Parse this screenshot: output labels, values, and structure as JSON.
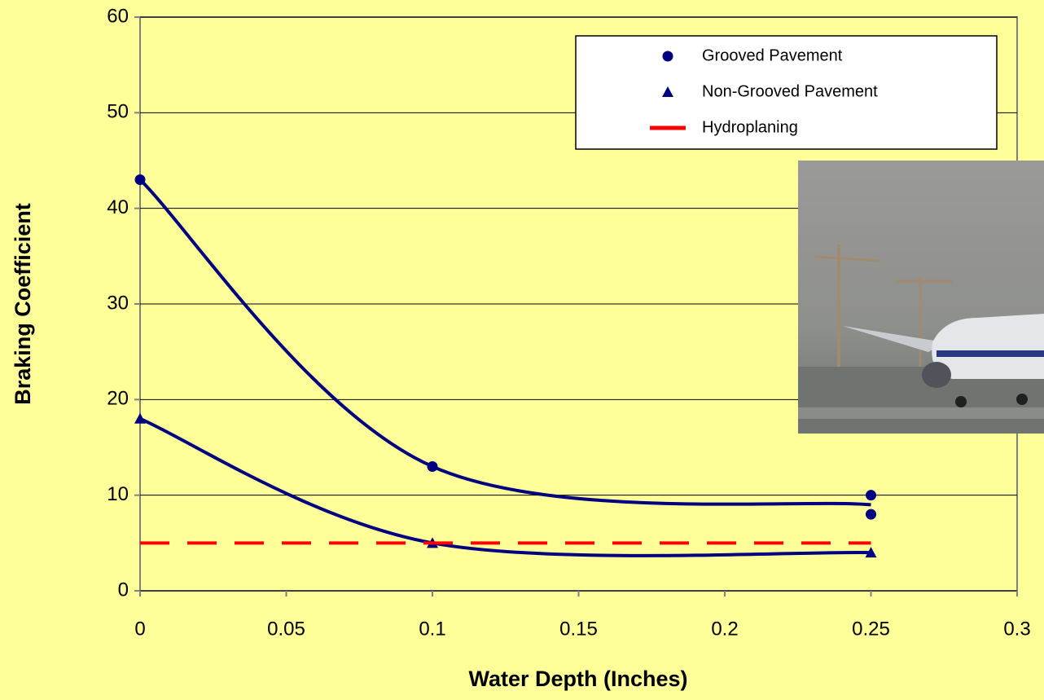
{
  "chart_data": {
    "type": "scatter",
    "xlabel": "Water Depth (Inches)",
    "ylabel": "Braking Coefficient",
    "xlim": [
      0,
      0.3
    ],
    "xticks": [
      0,
      0.05,
      0.1,
      0.15,
      0.2,
      0.25,
      0.3
    ],
    "ylim": [
      0,
      60
    ],
    "yticks": [
      0,
      10,
      20,
      30,
      40,
      50,
      60
    ],
    "grid": true,
    "legend": "top-right",
    "series": [
      {
        "name": "Grooved Pavement",
        "color": "#000080",
        "marker": "circle",
        "x": [
          0,
          0.1,
          0.25,
          0.25
        ],
        "values": [
          43,
          13,
          10,
          8
        ],
        "trend": {
          "x": [
            0,
            0.1,
            0.25
          ],
          "values": [
            43,
            13,
            9
          ]
        }
      },
      {
        "name": "Non-Grooved Pavement",
        "color": "#000080",
        "marker": "triangle",
        "x": [
          0,
          0.1,
          0.25
        ],
        "values": [
          18,
          5,
          4
        ],
        "trend": {
          "x": [
            0,
            0.1,
            0.25
          ],
          "values": [
            18,
            5,
            4
          ]
        }
      },
      {
        "name": "Hydroplaning",
        "color": "#ff0000",
        "marker": "dash",
        "x": [
          0,
          0.25
        ],
        "values": [
          5,
          5
        ]
      }
    ]
  }
}
